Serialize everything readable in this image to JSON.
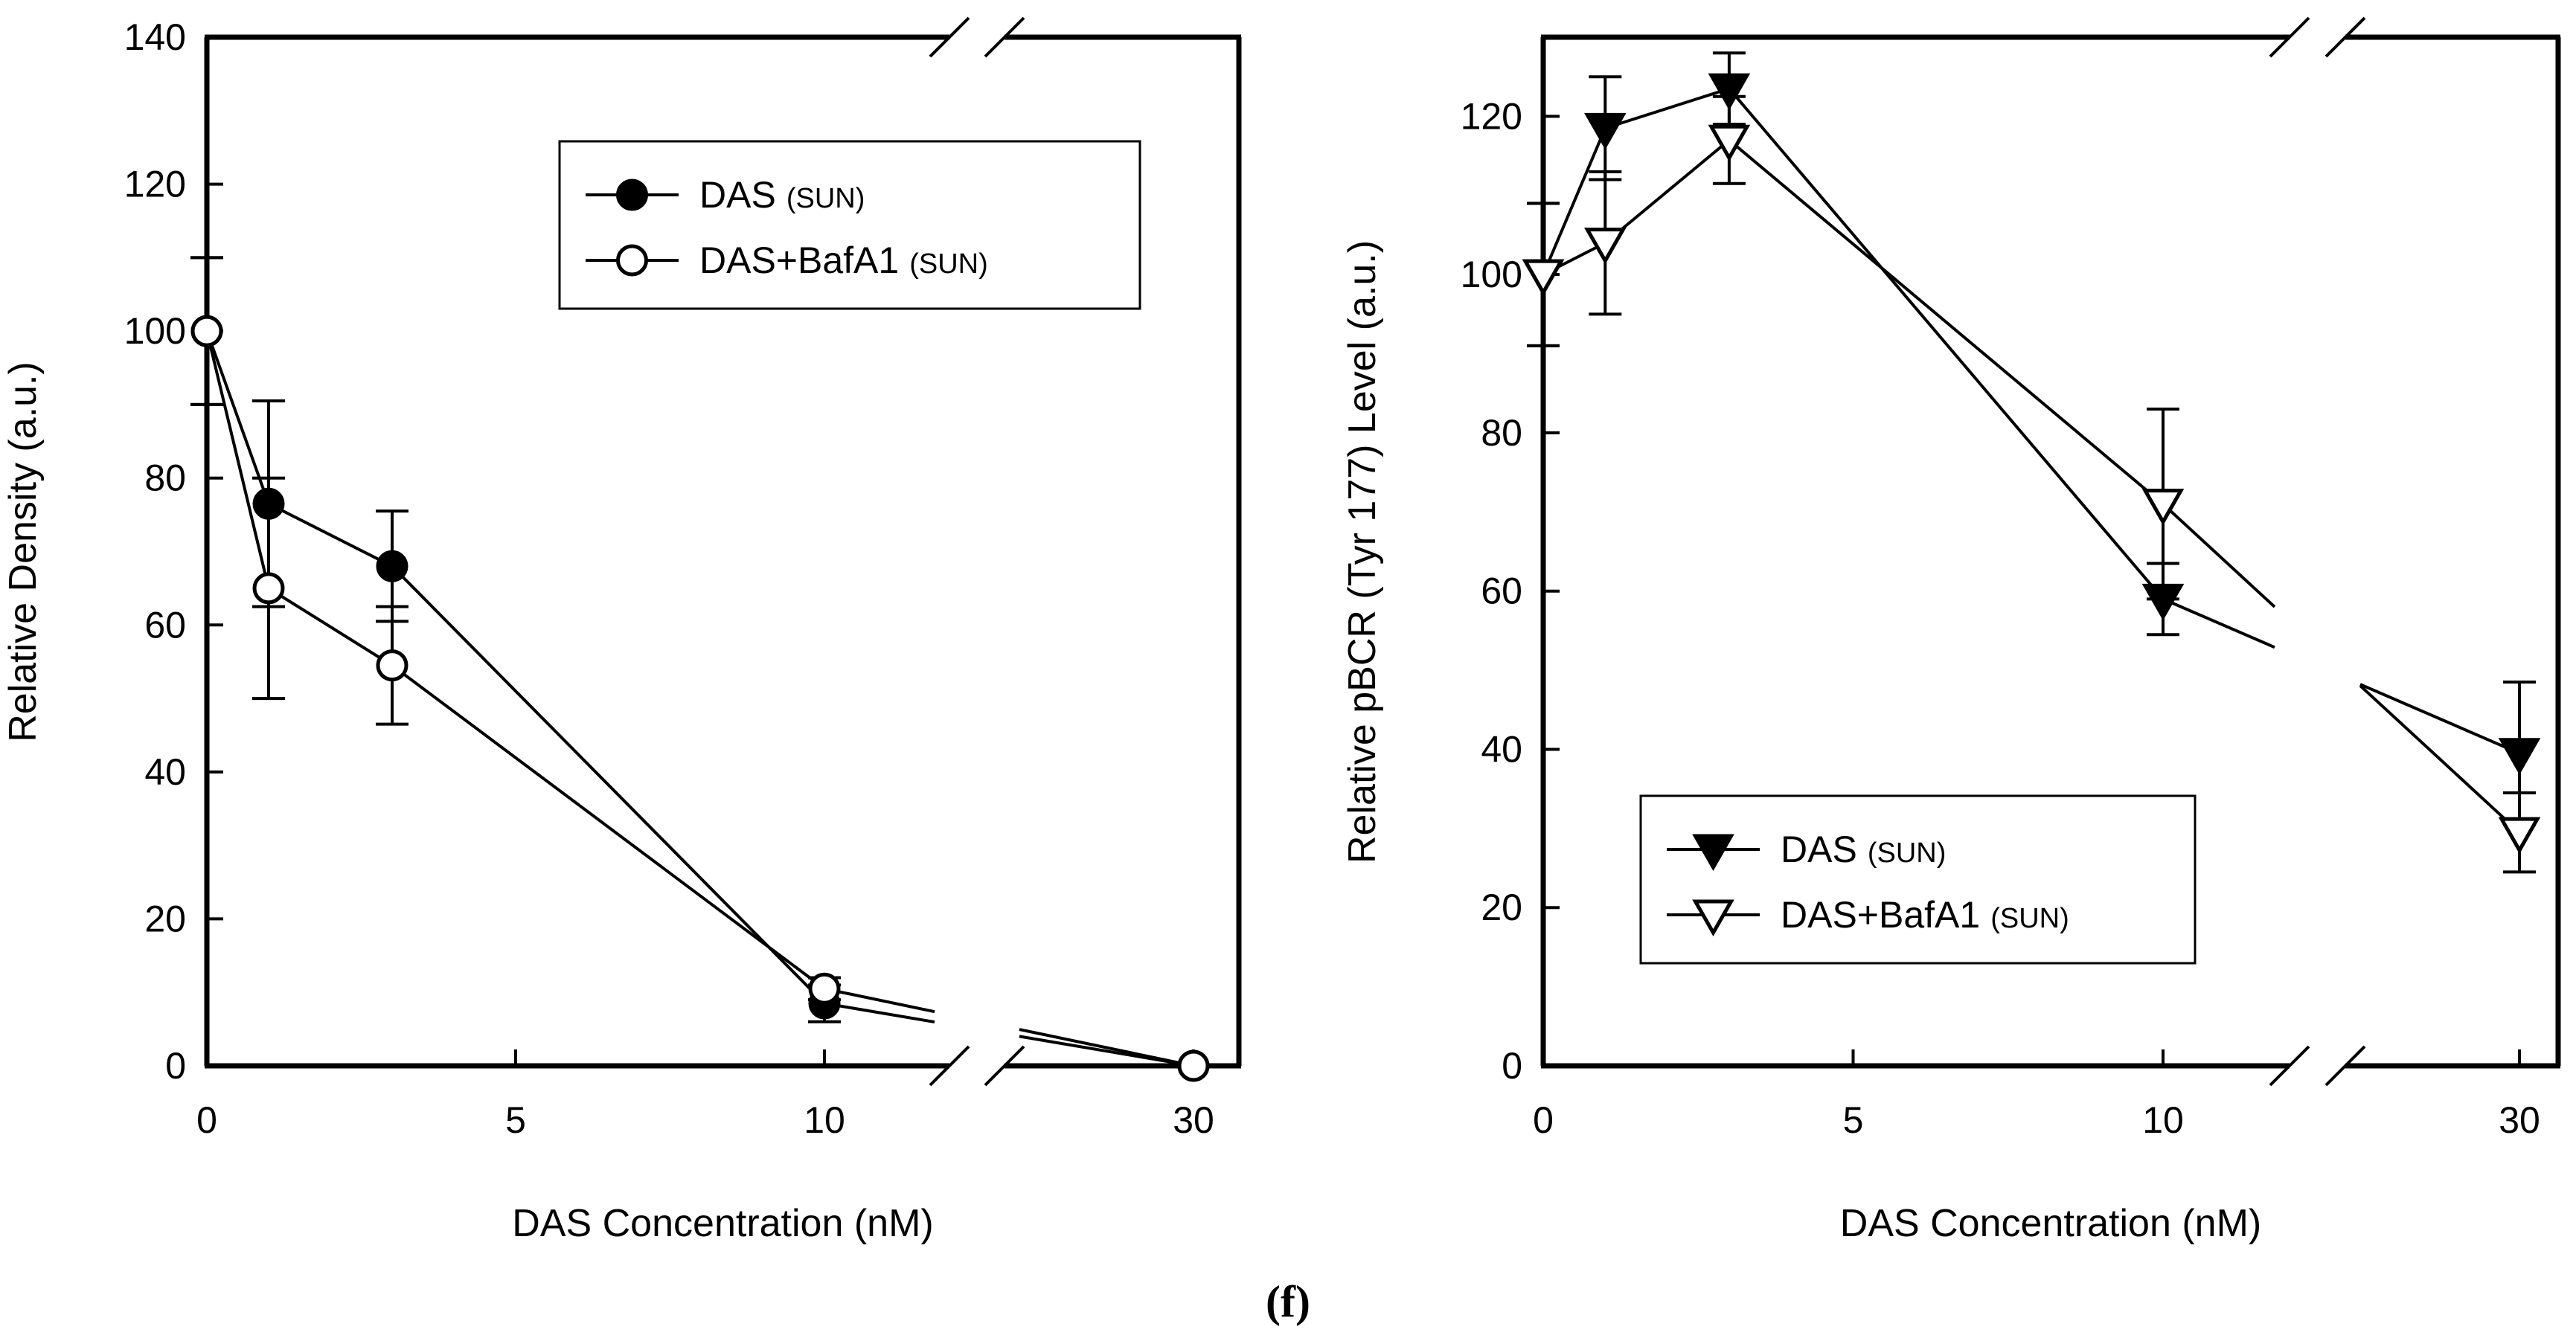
{
  "figure_label": "(f)",
  "colors": {
    "ink": "#000000",
    "background": "#ffffff"
  },
  "chart_data": [
    {
      "type": "line",
      "xlabel": "DAS Concentration (nM)",
      "ylabel": "Relative Density (a.u.)",
      "ylim": [
        0,
        140
      ],
      "yticks": [
        "0",
        "20",
        "40",
        "60",
        "80",
        "100",
        "120",
        "140"
      ],
      "xticks": [
        "0",
        "5",
        "10",
        "30"
      ],
      "x_axis_break": "between 10 and 30 nM",
      "x": [
        0,
        1,
        3,
        10,
        30
      ],
      "legend_position": "top-right",
      "series": [
        {
          "name": "DAS",
          "name_suffix": "(SUN)",
          "marker": "filled-circle",
          "values": [
            100,
            76.5,
            68,
            8.5,
            0
          ],
          "errors": [
            10,
            14,
            7.5,
            2.5,
            0
          ]
        },
        {
          "name": "DAS+BafA1",
          "name_suffix": "(SUN)",
          "marker": "open-circle",
          "values": [
            100,
            65,
            54.5,
            10.5,
            0
          ],
          "errors": [
            10,
            15,
            8,
            1.5,
            0
          ]
        }
      ]
    },
    {
      "type": "line",
      "xlabel": "DAS Concentration (nM)",
      "ylabel": "Relative pBCR (Tyr 177) Level (a.u.)",
      "ylim": [
        0,
        130
      ],
      "yticks": [
        "0",
        "20",
        "40",
        "60",
        "80",
        "100",
        "120"
      ],
      "xticks": [
        "0",
        "5",
        "10",
        "30"
      ],
      "x_axis_break": "between 10 and 30 nM",
      "x": [
        0,
        1,
        3,
        10,
        30
      ],
      "legend_position": "bottom-center",
      "series": [
        {
          "name": "DAS",
          "name_suffix": "(SUN)",
          "marker": "filled-triangle-down",
          "values": [
            100,
            118.5,
            123.5,
            59,
            39.5
          ],
          "errors": [
            9,
            6.5,
            4.5,
            4.5,
            9
          ]
        },
        {
          "name": "DAS+BafA1",
          "name_suffix": "(SUN)",
          "marker": "open-triangle-down",
          "values": [
            100,
            104,
            117,
            71,
            29.5
          ],
          "errors": [
            9,
            9,
            5.5,
            12,
            5
          ]
        }
      ]
    }
  ]
}
